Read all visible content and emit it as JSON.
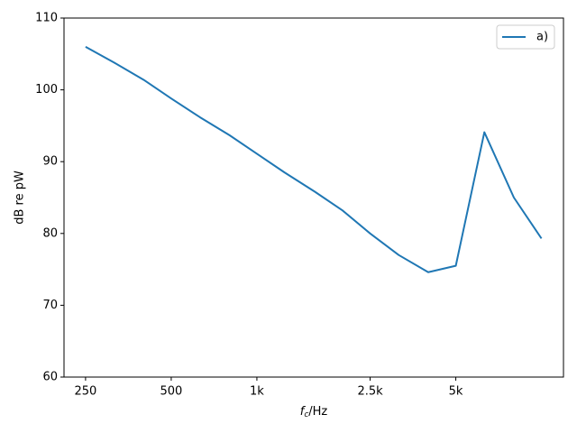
{
  "chart_data": {
    "type": "line",
    "x_label": "fc/Hz",
    "y_label": "dB re pW",
    "x": [
      250,
      315,
      400,
      500,
      630,
      800,
      1000,
      1250,
      1600,
      2000,
      2500,
      3150,
      4000,
      5000,
      6300,
      8000,
      10000
    ],
    "series": [
      {
        "name": "a)",
        "color": "#1f77b4",
        "values": [
          106,
          103.8,
          101.4,
          98.8,
          96.2,
          93.7,
          91.1,
          88.5,
          85.8,
          83.2,
          80.0,
          77.0,
          74.6,
          75.5,
          94.1,
          85.0,
          79.3
        ]
      }
    ],
    "xscale": "log",
    "xlim": [
      210,
      11950
    ],
    "ylim": [
      60,
      110
    ],
    "xticks": [
      250,
      500,
      {
        "value": 1000,
        "label": "1k"
      },
      {
        "value": 2500,
        "label": "2.5k"
      },
      {
        "value": 5000,
        "label": "5k"
      }
    ],
    "yticks": [
      60,
      70,
      80,
      90,
      100,
      110
    ],
    "legend": "upper right",
    "grid": false
  }
}
